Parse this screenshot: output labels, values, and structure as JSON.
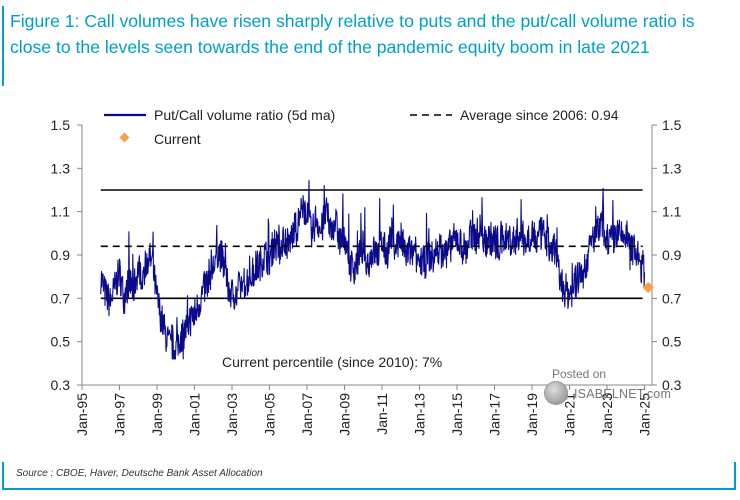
{
  "figure": {
    "title": "Figure 1: Call volumes have risen sharply relative to puts and the put/call volume ratio is close to the levels seen towards the end of the pandemic equity boom in late 2021",
    "source": "Source : CBOE, Haver, Deutsche Bank Asset Allocation",
    "watermark_line1": "Posted on",
    "watermark_line2": "ISABELNET.com"
  },
  "colors": {
    "title": "#00a0c6",
    "series": "#0a0a8c",
    "current_marker": "#f5a04a",
    "band": "#000000",
    "rules": "#00a0c6"
  },
  "chart_data": {
    "type": "line",
    "title": "",
    "xlabel": "",
    "ylabel": "",
    "ylim": [
      0.3,
      1.5
    ],
    "yticks": [
      0.3,
      0.5,
      0.7,
      0.9,
      1.1,
      1.3,
      1.5
    ],
    "ytick_labels": [
      "0.3",
      "0.5",
      "0.7",
      "0.9",
      "1.1",
      "1.3",
      "1.5"
    ],
    "xlim": [
      1995.0,
      2025.4
    ],
    "xticks": [
      1995,
      1997,
      1999,
      2001,
      2003,
      2005,
      2007,
      2009,
      2011,
      2013,
      2015,
      2017,
      2019,
      2021,
      2023,
      2025
    ],
    "xtick_labels": [
      "Jan-95",
      "Jan-97",
      "Jan-99",
      "Jan-01",
      "Jan-03",
      "Jan-05",
      "Jan-07",
      "Jan-09",
      "Jan-11",
      "Jan-13",
      "Jan-15",
      "Jan-17",
      "Jan-19",
      "Jan-21",
      "Jan-23",
      "Jan-25"
    ],
    "series": [
      {
        "name": "Put/Call volume ratio (5d ma)",
        "style": "line",
        "x": [
          1996.0,
          1996.25,
          1996.5,
          1996.75,
          1997.0,
          1997.25,
          1997.5,
          1997.75,
          1998.0,
          1998.25,
          1998.5,
          1998.75,
          1999.0,
          1999.25,
          1999.5,
          1999.75,
          2000.0,
          2000.25,
          2000.5,
          2000.75,
          2001.0,
          2001.25,
          2001.5,
          2001.75,
          2002.0,
          2002.25,
          2002.5,
          2002.75,
          2003.0,
          2003.25,
          2003.5,
          2003.75,
          2004.0,
          2004.25,
          2004.5,
          2004.75,
          2005.0,
          2005.25,
          2005.5,
          2005.75,
          2006.0,
          2006.25,
          2006.5,
          2006.75,
          2007.0,
          2007.25,
          2007.5,
          2007.75,
          2008.0,
          2008.25,
          2008.5,
          2008.75,
          2009.0,
          2009.25,
          2009.5,
          2009.75,
          2010.0,
          2010.25,
          2010.5,
          2010.75,
          2011.0,
          2011.25,
          2011.5,
          2011.75,
          2012.0,
          2012.25,
          2012.5,
          2012.75,
          2013.0,
          2013.25,
          2013.5,
          2013.75,
          2014.0,
          2014.25,
          2014.5,
          2014.75,
          2015.0,
          2015.25,
          2015.5,
          2015.75,
          2016.0,
          2016.25,
          2016.5,
          2016.75,
          2017.0,
          2017.25,
          2017.5,
          2017.75,
          2018.0,
          2018.25,
          2018.5,
          2018.75,
          2019.0,
          2019.25,
          2019.5,
          2019.75,
          2020.0,
          2020.25,
          2020.5,
          2020.75,
          2021.0,
          2021.25,
          2021.5,
          2021.75,
          2022.0,
          2022.25,
          2022.5,
          2022.75,
          2023.0,
          2023.25,
          2023.5,
          2023.75,
          2024.0,
          2024.25,
          2024.5,
          2024.75,
          2025.0
        ],
        "values": [
          0.8,
          0.72,
          0.68,
          0.75,
          0.82,
          0.7,
          0.78,
          0.74,
          0.84,
          0.8,
          0.9,
          0.86,
          0.7,
          0.6,
          0.52,
          0.47,
          0.46,
          0.52,
          0.55,
          0.6,
          0.62,
          0.68,
          0.74,
          0.8,
          0.84,
          0.92,
          0.88,
          0.76,
          0.72,
          0.72,
          0.76,
          0.78,
          0.8,
          0.84,
          0.86,
          0.9,
          0.88,
          0.96,
          0.92,
          0.98,
          0.94,
          1.0,
          1.04,
          1.1,
          1.12,
          0.98,
          1.08,
          1.0,
          1.1,
          1.02,
          1.06,
          0.96,
          1.0,
          0.86,
          0.84,
          0.88,
          0.94,
          0.86,
          0.92,
          0.9,
          0.96,
          0.9,
          1.0,
          0.94,
          0.98,
          0.9,
          0.92,
          0.88,
          0.88,
          0.86,
          0.9,
          0.88,
          0.94,
          0.9,
          0.92,
          0.96,
          0.98,
          0.94,
          0.92,
          1.0,
          0.98,
          1.02,
          0.96,
          0.98,
          0.96,
          0.94,
          0.98,
          0.98,
          0.96,
          1.0,
          0.98,
          0.96,
          1.02,
          0.96,
          1.0,
          0.98,
          0.92,
          0.94,
          0.78,
          0.74,
          0.72,
          0.76,
          0.8,
          0.82,
          0.9,
          0.98,
          1.0,
          1.04,
          0.98,
          0.96,
          1.0,
          0.98,
          1.0,
          0.94,
          0.92,
          0.86,
          0.82
        ]
      },
      {
        "name": "Average since 2006: 0.94",
        "style": "dashed",
        "value": 0.94,
        "x_range": [
          1996.0,
          2024.9
        ]
      },
      {
        "name": "Current",
        "style": "marker",
        "x": 2025.2,
        "value": 0.75
      }
    ],
    "reference_lines": [
      {
        "value": 1.2,
        "x_range": [
          1996.0,
          2024.9
        ]
      },
      {
        "value": 0.7,
        "x_range": [
          1996.0,
          2024.9
        ]
      }
    ],
    "legend_position": "top-left",
    "annotations": [
      {
        "text": "Current percentile (since 2010): 7%"
      }
    ]
  }
}
